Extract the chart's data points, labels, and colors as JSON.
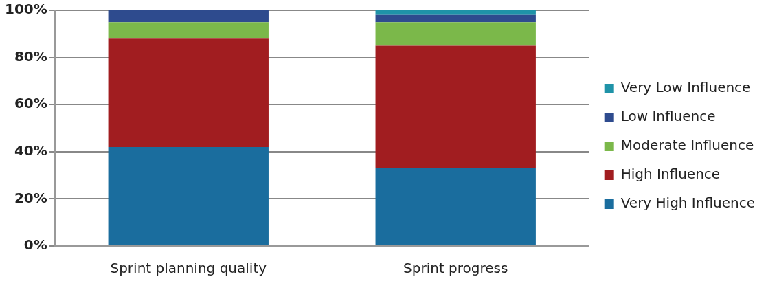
{
  "chart_data": {
    "type": "bar",
    "stacked": true,
    "categories": [
      "Sprint planning quality",
      "Sprint progress"
    ],
    "series": [
      {
        "name": "Very High Influence",
        "color": "#1a6d9e",
        "values": [
          42,
          33
        ]
      },
      {
        "name": "High Influence",
        "color": "#a11d20",
        "values": [
          46,
          52
        ]
      },
      {
        "name": "Moderate Influence",
        "color": "#7bb84a",
        "values": [
          7,
          10
        ]
      },
      {
        "name": "Low Influence",
        "color": "#2e4b8e",
        "values": [
          5,
          3
        ]
      },
      {
        "name": "Very Low Influence",
        "color": "#1f93a8",
        "values": [
          0,
          2
        ]
      }
    ],
    "ylim": [
      0,
      100
    ],
    "yticks": [
      {
        "value": 0,
        "label": "0%"
      },
      {
        "value": 20,
        "label": "20%"
      },
      {
        "value": 40,
        "label": "40%"
      },
      {
        "value": 60,
        "label": "60%"
      },
      {
        "value": 80,
        "label": "80%"
      },
      {
        "value": 100,
        "label": "100%"
      }
    ],
    "grid": "y",
    "legend": "right"
  }
}
